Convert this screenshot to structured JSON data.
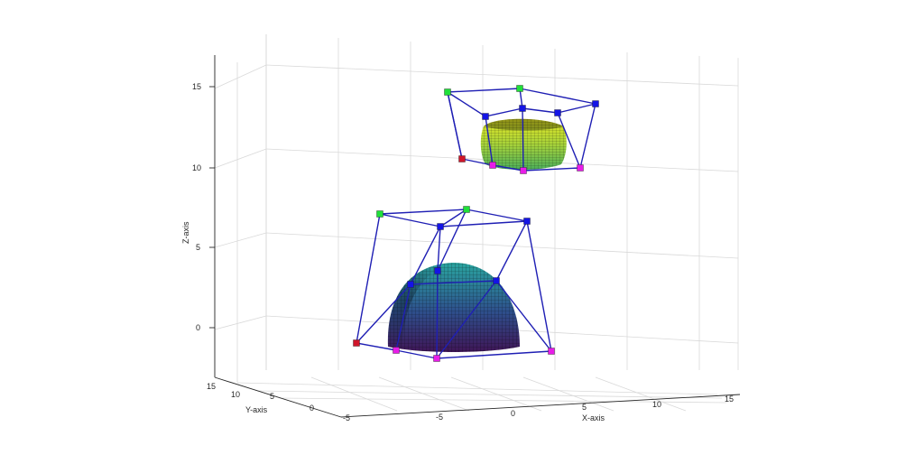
{
  "chart_data": {
    "type": "3d-surface-with-control-cages",
    "xlabel": "X-axis",
    "ylabel": "Y-axis",
    "zlabel": "Z-axis",
    "xlim": [
      -10,
      17
    ],
    "ylim": [
      -6,
      16
    ],
    "zlim": [
      -3,
      17
    ],
    "x_ticks": [
      "-5",
      "0",
      "5",
      "10",
      "15"
    ],
    "y_ticks": [
      "-5",
      "0",
      "5",
      "10",
      "15"
    ],
    "z_ticks": [
      "0",
      "5",
      "10",
      "15"
    ],
    "grid": true,
    "shapes": [
      {
        "surface": "dome",
        "colormap": "viridis-low",
        "top_color": "#2aa5a0",
        "base_color": "#3f1657",
        "cage_color": "#1f1fb4",
        "cage_points": [
          {
            "color": "#d0162a"
          },
          {
            "color": "#e81ce8"
          },
          {
            "color": "#e81ce8"
          },
          {
            "color": "#e81ce8"
          },
          {
            "color": "#20e03a"
          },
          {
            "color": "#20e03a"
          },
          {
            "color": "#1414e6"
          },
          {
            "color": "#1414e6"
          },
          {
            "color": "#1414e6"
          },
          {
            "color": "#1414e6"
          },
          {
            "color": "#1414e6"
          }
        ]
      },
      {
        "surface": "rounded-cylinder",
        "colormap": "viridis-high",
        "top_color": "#d6e326",
        "base_color": "#6fbf4a",
        "cage_color": "#1f1fb4",
        "cage_points": [
          {
            "color": "#d0162a"
          },
          {
            "color": "#e81ce8"
          },
          {
            "color": "#e81ce8"
          },
          {
            "color": "#e81ce8"
          },
          {
            "color": "#20e03a"
          },
          {
            "color": "#20e03a"
          },
          {
            "color": "#1414e6"
          },
          {
            "color": "#1414e6"
          },
          {
            "color": "#1414e6"
          },
          {
            "color": "#1414e6"
          }
        ]
      }
    ]
  }
}
